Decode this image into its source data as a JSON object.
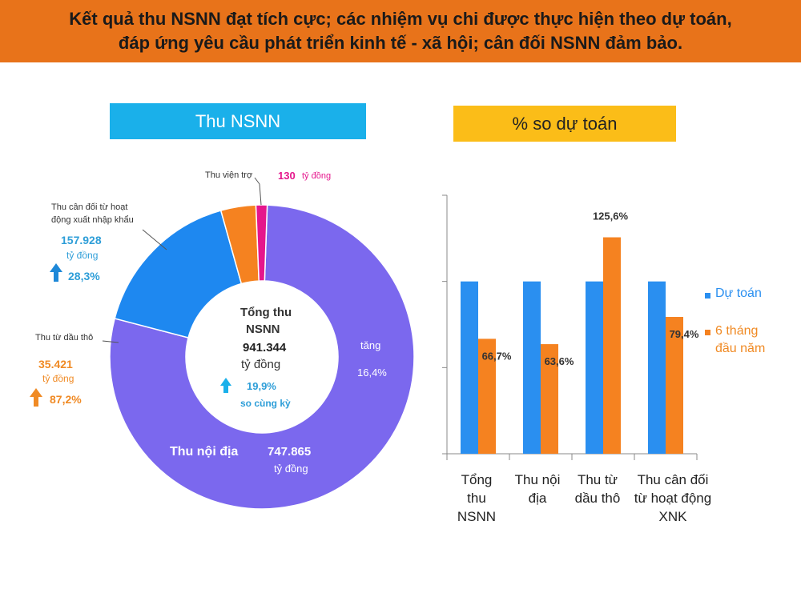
{
  "header": {
    "line1": "Kết quả thu NSNN đạt tích cực; các nhiệm vụ chi được thực hiện theo dự toán,",
    "line2": "đáp ứng yêu cầu phát triển kinh tế - xã hội; cân đối NSNN đảm bảo."
  },
  "left_title": "Thu NSNN",
  "right_title": "% so dự toán",
  "colors": {
    "header": "#e8731a",
    "blue": "#1ab0ea",
    "purple": "#7b68ee",
    "orange": "#f58220",
    "pink": "#e5168c",
    "bar_blue": "#2a8ff0"
  },
  "donut": {
    "center": {
      "line1": "Tổng thu",
      "line2": "NSNN",
      "value": "941.344",
      "unit": "tỷ đồng",
      "pct": "19,9%",
      "pct_note": "so cùng kỳ"
    },
    "noi_dia": {
      "label": "Thu nội địa",
      "value": "747.865",
      "unit": "tỷ đồng",
      "growth_label": "tăng",
      "growth": "16,4%"
    },
    "xnk": {
      "label1": "Thu cân đối từ hoạt",
      "label2": "động xuất nhập khẩu",
      "value": "157.928",
      "unit": "tỷ đồng",
      "growth": "28,3%"
    },
    "dau_tho": {
      "label": "Thu từ dầu thô",
      "value": "35.421",
      "unit": "tỷ đồng",
      "growth": "87,2%"
    },
    "vien_tro": {
      "label": "Thu viện trợ",
      "value": "130",
      "unit": "tỷ đồng"
    }
  },
  "chart_data": [
    {
      "type": "pie",
      "title": "Thu NSNN",
      "categories": [
        "Thu nội địa",
        "Thu cân đối từ hoạt động xuất nhập khẩu",
        "Thu từ dầu thô",
        "Thu viện trợ"
      ],
      "values": [
        747865,
        157928,
        35421,
        130
      ],
      "unit": "tỷ đồng",
      "total": 941344
    },
    {
      "type": "bar",
      "title": "% so dự toán",
      "categories": [
        "Tổng thu NSNN",
        "Thu nội địa",
        "Thu từ dầu thô",
        "Thu cân đối từ hoạt động XNK"
      ],
      "category_lines": [
        [
          "Tổng",
          "thu",
          "NSNN"
        ],
        [
          "Thu nội",
          "địa"
        ],
        [
          "Thu từ",
          "dầu thô"
        ],
        [
          "Thu cân đối",
          "từ hoạt động",
          "XNK"
        ]
      ],
      "series": [
        {
          "name": "Dự toán",
          "values": [
            100,
            100,
            100,
            100
          ]
        },
        {
          "name": "6 tháng đầu năm",
          "values": [
            66.7,
            63.6,
            125.6,
            79.4
          ]
        }
      ],
      "data_labels": [
        "66,7%",
        "63,6%",
        "125,6%",
        "79,4%"
      ],
      "legend": [
        {
          "line1": "Dự toán",
          "line2": ""
        },
        {
          "line1": "6 tháng",
          "line2": "đầu năm"
        }
      ],
      "ylim": [
        0,
        150
      ]
    }
  ]
}
